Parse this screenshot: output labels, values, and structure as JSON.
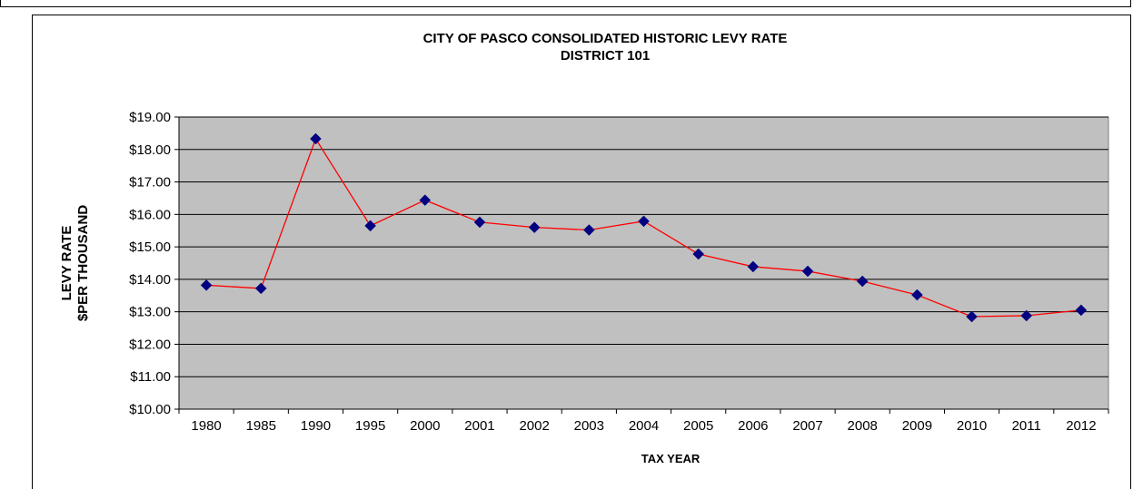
{
  "chart_data": {
    "type": "line",
    "title": "CITY OF PASCO CONSOLIDATED HISTORIC LEVY RATE",
    "subtitle": "DISTRICT 101",
    "xlabel": "TAX YEAR",
    "ylabel": [
      "LEVY RATE",
      "$PER THOUSAND"
    ],
    "categories": [
      "1980",
      "1985",
      "1990",
      "1995",
      "2000",
      "2001",
      "2002",
      "2003",
      "2004",
      "2005",
      "2006",
      "2007",
      "2008",
      "2009",
      "2010",
      "2011",
      "2012"
    ],
    "series": [
      {
        "values": [
          13.82,
          13.72,
          18.33,
          15.65,
          16.44,
          15.76,
          15.6,
          15.52,
          15.79,
          14.78,
          14.39,
          14.25,
          13.94,
          13.52,
          12.85,
          12.88,
          13.05
        ],
        "line_color": "#ff0000",
        "marker_color": "#000080",
        "marker": "diamond"
      }
    ],
    "ylim": [
      10,
      19
    ],
    "ystep": 1,
    "ytick_labels": [
      "$10.00",
      "$11.00",
      "$12.00",
      "$13.00",
      "$14.00",
      "$15.00",
      "$16.00",
      "$17.00",
      "$18.00",
      "$19.00"
    ],
    "grid": true,
    "plot_background": "#c0c0c0",
    "legend": "none"
  }
}
